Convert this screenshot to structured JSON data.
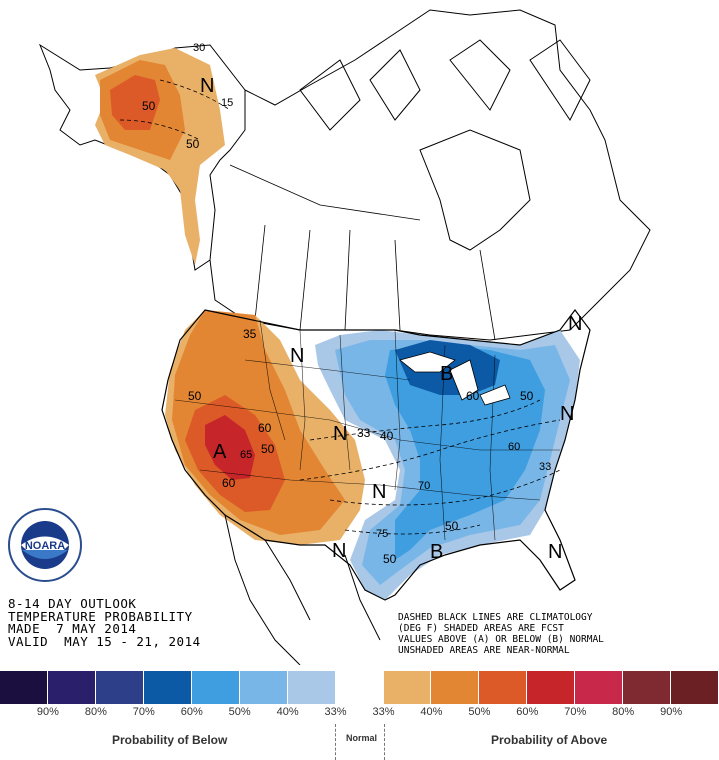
{
  "info": {
    "line1": "8-14 DAY OUTLOOK",
    "line2": "TEMPERATURE PROBABILITY",
    "line3": "MADE  7 MAY 2014",
    "line4": "VALID  MAY 15 - 21, 2014"
  },
  "note": {
    "line1": "DASHED BLACK LINES ARE CLIMATOLOGY",
    "line2": "(DEG F) SHADED AREAS ARE FCST",
    "line3": "VALUES ABOVE (A) OR BELOW (B) NORMAL",
    "line4": "UNSHADED AREAS ARE NEAR-NORMAL"
  },
  "logo": {
    "text": "NOARA",
    "ring_text": "NATIONAL OCEANIC AND ATMOSPHERIC ADMINISTRATION · U.S. DEPARTMENT OF COMMERCE"
  },
  "map_labels": {
    "alaska_n": "N",
    "alaska_30": "30",
    "alaska_15": "15",
    "alaska_50a": "50",
    "alaska_50b": "50",
    "west_a": "A",
    "west_35": "35",
    "west_50": "50",
    "west_60a": "60",
    "west_60b": "60",
    "west_50b": "50",
    "west_65": "65",
    "north_n1": "N",
    "plains_n": "N",
    "plains_33": "33",
    "plains_40": "40",
    "plains_n2": "N",
    "plains_70": "70",
    "gl_b": "B",
    "gl_60": "60",
    "gl_50": "50",
    "se_b": "B",
    "se_75": "75",
    "se_50a": "50",
    "se_50b": "50",
    "tx_n": "N",
    "ne_n": "N",
    "east_60": "60",
    "east_33": "33",
    "east_n": "N",
    "se_n": "N"
  },
  "legend": {
    "colors": [
      "#1b0f3f",
      "#2a1f6b",
      "#2e3f8a",
      "#0c5aa6",
      "#3f9ee0",
      "#78b6e8",
      "#a9c7e6",
      "#ffffff",
      "#e9b168",
      "#e38633",
      "#dc5a27",
      "#c6262a",
      "#c8284a",
      "#7e2a30",
      "#6b2024"
    ],
    "labels": [
      "90%",
      "80%",
      "70%",
      "60%",
      "50%",
      "40%",
      "33%",
      "33%",
      "40%",
      "50%",
      "60%",
      "70%",
      "80%",
      "90%"
    ],
    "below_title": "Probability of Below",
    "normal_title": "Normal",
    "above_title": "Probability of Above"
  }
}
